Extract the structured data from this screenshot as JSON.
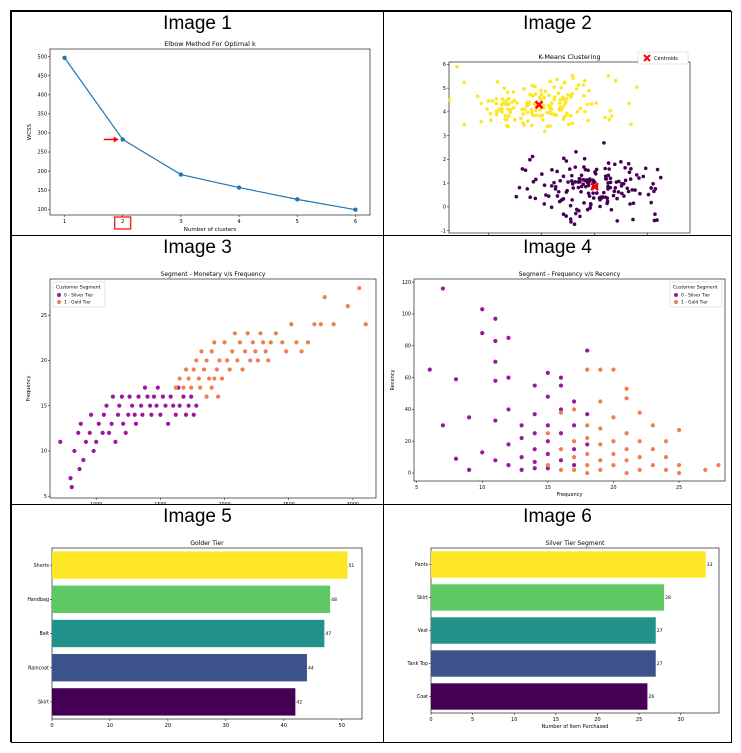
{
  "panels": [
    {
      "title": "Image 1"
    },
    {
      "title": "Image 2"
    },
    {
      "title": "Image 3"
    },
    {
      "title": "Image 4"
    },
    {
      "title": "Image 5"
    },
    {
      "title": "Image 6"
    }
  ],
  "colors": {
    "line": "#1f77b4",
    "highlight": "#ff0000",
    "cluster0": "#440154",
    "cluster1": "#fde725",
    "silver": "#9c179e",
    "gold": "#f07e4f",
    "bars5": [
      "#fde725",
      "#5ec962",
      "#21918c",
      "#3b528b",
      "#440154"
    ],
    "bars6": [
      "#fde725",
      "#5ec962",
      "#21918c",
      "#3b528b",
      "#440154"
    ]
  },
  "chart_data": [
    {
      "type": "line",
      "title": "Elbow Method For Optimal k",
      "xlabel": "Number of clusters",
      "ylabel": "WCSS",
      "x": [
        1,
        2,
        3,
        4,
        5,
        6
      ],
      "values": [
        497,
        283,
        191,
        157,
        126,
        99
      ],
      "xticks": [
        "1",
        "2",
        "3",
        "4",
        "5",
        "6"
      ],
      "yticks": [
        "100",
        "150",
        "200",
        "250",
        "300",
        "350",
        "400",
        "450",
        "500"
      ],
      "ylim": [
        85,
        520
      ],
      "xlim": [
        0.75,
        6.25
      ],
      "annotation": "arrow and box marking k = 2"
    },
    {
      "type": "scatter",
      "title": "K-Means Clustering",
      "legend": [
        "Centroids"
      ],
      "xticks": [
        "0",
        "1",
        "2",
        "3"
      ],
      "yticks": [
        "-1",
        "0",
        "1",
        "2",
        "3",
        "4",
        "5",
        "6"
      ],
      "xlim": [
        -0.75,
        3.8
      ],
      "ylim": [
        -1.1,
        6.1
      ],
      "centroids": [
        [
          0.95,
          4.3
        ],
        [
          2.0,
          0.85
        ]
      ],
      "cluster_centers": [
        [
          0.95,
          4.3
        ],
        [
          2.0,
          0.85
        ]
      ],
      "cluster_spread": [
        [
          0.75,
          0.55
        ],
        [
          0.65,
          0.6
        ]
      ],
      "points_per_cluster": 170
    },
    {
      "type": "scatter",
      "title": "Segment - Monetary v/s Frequency",
      "xlabel": "Monetary",
      "ylabel": "Frequency",
      "legend_title": "Customer Segment",
      "legend": [
        "0 - Silver Tier",
        "1 - Gold Tier"
      ],
      "xticks": [
        "1000",
        "1500",
        "2000",
        "2500",
        "3000"
      ],
      "yticks": [
        "5",
        "10",
        "15",
        "20",
        "25"
      ],
      "xlim": [
        640,
        3180
      ],
      "ylim": [
        4.8,
        29
      ],
      "silver_points": [
        [
          720,
          11
        ],
        [
          800,
          7
        ],
        [
          810,
          6
        ],
        [
          830,
          10
        ],
        [
          860,
          12
        ],
        [
          870,
          8
        ],
        [
          880,
          13
        ],
        [
          900,
          9
        ],
        [
          920,
          11
        ],
        [
          950,
          12
        ],
        [
          960,
          14
        ],
        [
          980,
          10
        ],
        [
          1000,
          11
        ],
        [
          1020,
          13
        ],
        [
          1050,
          12
        ],
        [
          1060,
          14
        ],
        [
          1080,
          15
        ],
        [
          1100,
          12
        ],
        [
          1120,
          13
        ],
        [
          1130,
          16
        ],
        [
          1150,
          11
        ],
        [
          1170,
          14
        ],
        [
          1180,
          15
        ],
        [
          1200,
          16
        ],
        [
          1210,
          13
        ],
        [
          1230,
          12
        ],
        [
          1250,
          14
        ],
        [
          1260,
          16
        ],
        [
          1280,
          15
        ],
        [
          1300,
          14
        ],
        [
          1310,
          13
        ],
        [
          1330,
          16
        ],
        [
          1350,
          15
        ],
        [
          1360,
          14
        ],
        [
          1380,
          17
        ],
        [
          1400,
          16
        ],
        [
          1420,
          15
        ],
        [
          1430,
          14
        ],
        [
          1450,
          16
        ],
        [
          1470,
          15
        ],
        [
          1480,
          17
        ],
        [
          1500,
          14
        ],
        [
          1520,
          16
        ],
        [
          1540,
          15
        ],
        [
          1560,
          13
        ],
        [
          1580,
          16
        ],
        [
          1600,
          15
        ],
        [
          1620,
          14
        ],
        [
          1640,
          17
        ],
        [
          1650,
          15
        ],
        [
          1680,
          16
        ],
        [
          1700,
          14
        ],
        [
          1720,
          15
        ],
        [
          1740,
          16
        ],
        [
          1760,
          14
        ],
        [
          1780,
          15
        ]
      ],
      "gold_points": [
        [
          1620,
          17
        ],
        [
          1650,
          18
        ],
        [
          1680,
          17
        ],
        [
          1700,
          19
        ],
        [
          1720,
          18
        ],
        [
          1740,
          17
        ],
        [
          1760,
          19
        ],
        [
          1780,
          20
        ],
        [
          1800,
          18
        ],
        [
          1810,
          17
        ],
        [
          1820,
          21
        ],
        [
          1840,
          19
        ],
        [
          1860,
          20
        ],
        [
          1880,
          18
        ],
        [
          1900,
          21
        ],
        [
          1920,
          22
        ],
        [
          1940,
          19
        ],
        [
          1960,
          20
        ],
        [
          1980,
          18
        ],
        [
          2000,
          22
        ],
        [
          2020,
          20
        ],
        [
          2040,
          19
        ],
        [
          2060,
          21
        ],
        [
          2080,
          23
        ],
        [
          2100,
          20
        ],
        [
          2120,
          22
        ],
        [
          2140,
          19
        ],
        [
          2160,
          21
        ],
        [
          2180,
          23
        ],
        [
          2200,
          20
        ],
        [
          2220,
          22
        ],
        [
          2240,
          21
        ],
        [
          2260,
          20
        ],
        [
          2280,
          23
        ],
        [
          2300,
          22
        ],
        [
          2320,
          21
        ],
        [
          2340,
          20
        ],
        [
          2360,
          22
        ],
        [
          2400,
          23
        ],
        [
          2450,
          22
        ],
        [
          2480,
          21
        ],
        [
          2520,
          24
        ],
        [
          2560,
          22
        ],
        [
          2600,
          21
        ],
        [
          2650,
          22
        ],
        [
          2700,
          24
        ],
        [
          2750,
          24
        ],
        [
          2780,
          27
        ],
        [
          2850,
          24
        ],
        [
          2960,
          26
        ],
        [
          3050,
          28
        ],
        [
          3100,
          24
        ],
        [
          1860,
          16
        ],
        [
          1900,
          17
        ],
        [
          1920,
          18
        ],
        [
          1950,
          16
        ]
      ]
    },
    {
      "type": "scatter",
      "title": "Segment - Frequency v/s Recency",
      "xlabel": "Frequency",
      "ylabel": "Recency",
      "legend_title": "Customer Segment",
      "legend": [
        "0 - Silver Tier",
        "1 - Gold Tier"
      ],
      "xticks": [
        "5",
        "10",
        "15",
        "20",
        "25"
      ],
      "yticks": [
        "0",
        "20",
        "40",
        "60",
        "80",
        "100",
        "120"
      ],
      "xlim": [
        4.8,
        28.5
      ],
      "ylim": [
        -5,
        122
      ],
      "silver_points": [
        [
          6,
          65
        ],
        [
          7,
          116
        ],
        [
          7,
          30
        ],
        [
          8,
          9
        ],
        [
          8,
          59
        ],
        [
          9,
          35
        ],
        [
          9,
          2
        ],
        [
          10,
          103
        ],
        [
          10,
          88
        ],
        [
          10,
          13
        ],
        [
          11,
          97
        ],
        [
          11,
          83
        ],
        [
          11,
          70
        ],
        [
          11,
          58
        ],
        [
          11,
          33
        ],
        [
          11,
          8
        ],
        [
          12,
          85
        ],
        [
          12,
          40
        ],
        [
          12,
          18
        ],
        [
          12,
          5
        ],
        [
          13,
          22
        ],
        [
          13,
          10
        ],
        [
          13,
          2
        ],
        [
          14,
          55
        ],
        [
          14,
          37
        ],
        [
          14,
          25
        ],
        [
          14,
          15
        ],
        [
          14,
          7
        ],
        [
          15,
          63
        ],
        [
          15,
          48
        ],
        [
          15,
          30
        ],
        [
          15,
          20
        ],
        [
          15,
          12
        ],
        [
          15,
          3
        ],
        [
          16,
          55
        ],
        [
          16,
          40
        ],
        [
          16,
          25
        ],
        [
          16,
          8
        ],
        [
          17,
          45
        ],
        [
          17,
          30
        ],
        [
          17,
          15
        ],
        [
          17,
          5
        ],
        [
          18,
          77
        ],
        [
          18,
          18
        ],
        [
          14,
          3
        ],
        [
          13,
          30
        ],
        [
          12,
          60
        ],
        [
          16,
          60
        ],
        [
          18,
          37
        ]
      ],
      "gold_points": [
        [
          15,
          25
        ],
        [
          15,
          5
        ],
        [
          16,
          38
        ],
        [
          16,
          15
        ],
        [
          16,
          2
        ],
        [
          17,
          40
        ],
        [
          17,
          20
        ],
        [
          17,
          10
        ],
        [
          17,
          2
        ],
        [
          18,
          65
        ],
        [
          18,
          30
        ],
        [
          18,
          22
        ],
        [
          18,
          12
        ],
        [
          18,
          5
        ],
        [
          18,
          0
        ],
        [
          19,
          65
        ],
        [
          19,
          45
        ],
        [
          19,
          28
        ],
        [
          19,
          18
        ],
        [
          19,
          8
        ],
        [
          19,
          2
        ],
        [
          20,
          35
        ],
        [
          20,
          20
        ],
        [
          20,
          12
        ],
        [
          20,
          5
        ],
        [
          21,
          47
        ],
        [
          21,
          25
        ],
        [
          21,
          15
        ],
        [
          21,
          8
        ],
        [
          21,
          0
        ],
        [
          22,
          38
        ],
        [
          22,
          20
        ],
        [
          22,
          10
        ],
        [
          22,
          2
        ],
        [
          23,
          30
        ],
        [
          23,
          15
        ],
        [
          23,
          5
        ],
        [
          24,
          20
        ],
        [
          24,
          10
        ],
        [
          24,
          2
        ],
        [
          25,
          27
        ],
        [
          25,
          5
        ],
        [
          25,
          0
        ],
        [
          27,
          2
        ],
        [
          28,
          5
        ],
        [
          20,
          65
        ],
        [
          21,
          53
        ]
      ]
    },
    {
      "type": "bar",
      "orientation": "horizontal",
      "title": "Golder Tier",
      "categories": [
        "Shorts",
        "Handbag",
        "Belt",
        "Raincoat",
        "Skirt"
      ],
      "values": [
        51,
        48,
        47,
        44,
        42
      ],
      "xticks": [
        "0",
        "10",
        "20",
        "30",
        "40",
        "50"
      ],
      "xlim": [
        0,
        53.5
      ]
    },
    {
      "type": "bar",
      "orientation": "horizontal",
      "title": "Silver Tier Segment",
      "xlabel": "Number of Item Purchased",
      "categories": [
        "Pants",
        "Skirt",
        "Vest",
        "Tank Top",
        "Coat"
      ],
      "values": [
        33,
        28,
        27,
        27,
        26
      ],
      "xticks": [
        "0",
        "5",
        "10",
        "15",
        "20",
        "25",
        "30"
      ],
      "xlim": [
        0,
        34.6
      ]
    }
  ]
}
